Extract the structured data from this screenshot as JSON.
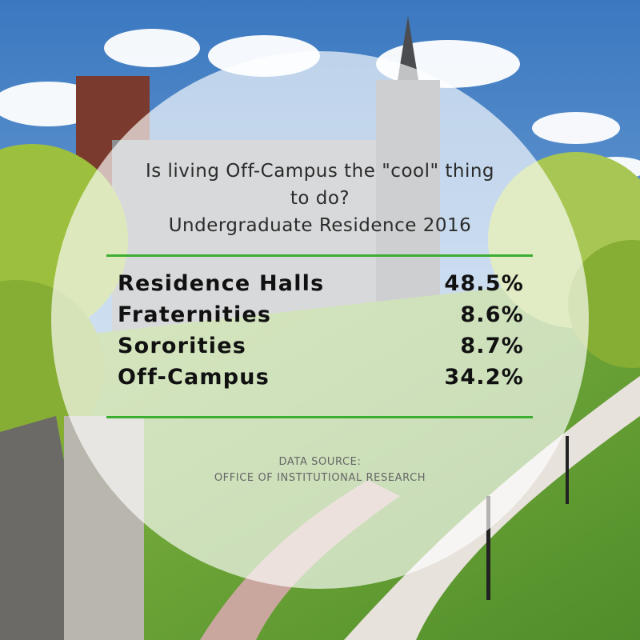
{
  "colors": {
    "accent_rule": "#3cae32",
    "sky": "#3f7fc4",
    "lawn": "#6fa83a"
  },
  "chart_data": {
    "type": "table",
    "title_lines": [
      "Is living Off-Campus the \"cool\" thing",
      "to do?",
      "Undergraduate Residence 2016"
    ],
    "rows": [
      {
        "label": "Residence Halls",
        "value": "48.5%"
      },
      {
        "label": "Fraternities",
        "value": "8.6%"
      },
      {
        "label": "Sororities",
        "value": "8.7%"
      },
      {
        "label": "Off-Campus",
        "value": "34.2%"
      }
    ],
    "source_lines": [
      "DATA SOURCE:",
      "OFFICE OF INSTITUTIONAL RESEARCH"
    ]
  }
}
